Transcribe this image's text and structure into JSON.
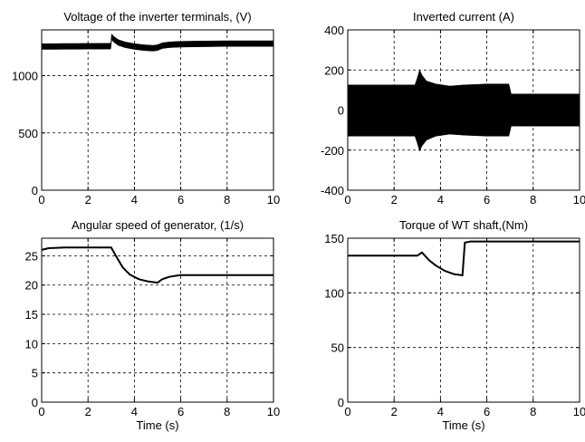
{
  "chart_data": [
    {
      "type": "line",
      "title": "Voltage of the inverter terminals, (V)",
      "xlabel": "",
      "xlim": [
        0,
        10
      ],
      "ylim": [
        0,
        1400
      ],
      "xticks": [
        0,
        2,
        4,
        6,
        8,
        10
      ],
      "yticks": [
        0,
        500,
        1000
      ],
      "xtick_labels": [
        "0",
        "2",
        "4",
        "6",
        "8",
        "10"
      ],
      "ytick_labels": [
        "0",
        "500",
        "1000"
      ],
      "grid": true,
      "series": [
        {
          "x": [
            0,
            0.5,
            1,
            1.5,
            2,
            2.5,
            2.98,
            3.02,
            3.1,
            3.3,
            3.6,
            4.0,
            4.4,
            4.8,
            5.0,
            5.2,
            5.5,
            6.0,
            7.0,
            8.0,
            9.0,
            10.0
          ],
          "y": [
            1255,
            1255,
            1256,
            1256,
            1257,
            1257,
            1258,
            1340,
            1320,
            1290,
            1270,
            1255,
            1245,
            1240,
            1245,
            1262,
            1270,
            1275,
            1278,
            1280,
            1280,
            1280
          ],
          "band": 25
        }
      ]
    },
    {
      "type": "line",
      "title": "Inverted current (A)",
      "xlabel": "",
      "xlim": [
        0,
        10
      ],
      "ylim": [
        -400,
        400
      ],
      "xticks": [
        0,
        2,
        4,
        6,
        8,
        10
      ],
      "yticks": [
        -400,
        -200,
        0,
        200,
        400
      ],
      "xtick_labels": [
        "0",
        "2",
        "4",
        "6",
        "8",
        "10"
      ],
      "ytick_labels": [
        "-400",
        "-200",
        "0",
        "200",
        "400"
      ],
      "grid": true,
      "series": [
        {
          "x": [
            0,
            2.9,
            3.0,
            3.1,
            3.2,
            3.4,
            3.8,
            4.4,
            5.0,
            6.0,
            6.95,
            7.05,
            10
          ],
          "upper": [
            125,
            125,
            160,
            200,
            175,
            145,
            130,
            120,
            125,
            130,
            130,
            80,
            80
          ],
          "lower": [
            -130,
            -130,
            -165,
            -205,
            -180,
            -150,
            -130,
            -120,
            -125,
            -130,
            -130,
            -80,
            -80
          ]
        }
      ]
    },
    {
      "type": "line",
      "title": "Angular speed of generator, (1/s)",
      "xlabel": "Time (s)",
      "xlim": [
        0,
        10
      ],
      "ylim": [
        0,
        28
      ],
      "xticks": [
        0,
        2,
        4,
        6,
        8,
        10
      ],
      "yticks": [
        0,
        5,
        10,
        15,
        20,
        25
      ],
      "xtick_labels": [
        "0",
        "2",
        "4",
        "6",
        "8",
        "10"
      ],
      "ytick_labels": [
        "0",
        "5",
        "10",
        "15",
        "20",
        "25"
      ],
      "grid": true,
      "series": [
        {
          "x": [
            0,
            0.3,
            1,
            2,
            3.0,
            3.2,
            3.5,
            3.8,
            4.2,
            4.6,
            5.0,
            5.2,
            5.5,
            5.8,
            6.0,
            7,
            8,
            9,
            10
          ],
          "y": [
            26.0,
            26.3,
            26.4,
            26.4,
            26.4,
            25.0,
            23.0,
            21.8,
            21.0,
            20.6,
            20.4,
            21.0,
            21.4,
            21.6,
            21.7,
            21.7,
            21.7,
            21.7,
            21.7
          ]
        }
      ]
    },
    {
      "type": "line",
      "title": "Torque of WT shaft,(Nm)",
      "xlabel": "Time (s)",
      "xlim": [
        0,
        10
      ],
      "ylim": [
        0,
        150
      ],
      "xticks": [
        0,
        2,
        4,
        6,
        8,
        10
      ],
      "yticks": [
        0,
        50,
        100,
        150
      ],
      "xtick_labels": [
        "0",
        "2",
        "4",
        "6",
        "8",
        "10"
      ],
      "ytick_labels": [
        "0",
        "50",
        "100",
        "150"
      ],
      "grid": true,
      "series": [
        {
          "x": [
            0,
            1,
            2,
            3.0,
            3.2,
            3.5,
            3.8,
            4.2,
            4.6,
            4.95,
            5.05,
            5.3,
            6,
            7,
            8,
            9,
            10
          ],
          "y": [
            134,
            134,
            134,
            134,
            137,
            130,
            125,
            120,
            117,
            116,
            146,
            147,
            147,
            147,
            147,
            147,
            147
          ]
        }
      ]
    }
  ]
}
